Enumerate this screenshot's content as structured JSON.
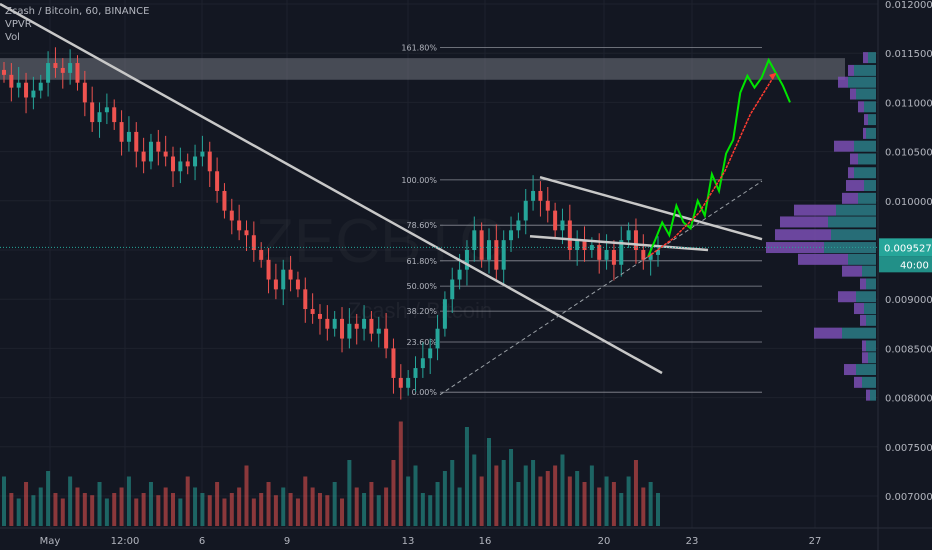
{
  "legend": {
    "symbol_line": "Zcash / Bitcoin, 60, BINANCE",
    "indicator1": "VPVR",
    "indicator2": "Vol"
  },
  "watermark": {
    "ticker": "ZECBTC",
    "name": "Zcash / Bitcoin"
  },
  "colors": {
    "background": "#131722",
    "grid": "#1e222d",
    "up": "#26a69a",
    "down": "#ef5350",
    "vpvr_up": "#2c7d86",
    "vpvr_down": "#7b4fb4",
    "projection_green": "#00e600",
    "projection_red": "#ff3b30",
    "trendline": "#c8c8c8",
    "resistance_zone": "#6b6e78"
  },
  "price_axis": {
    "ticks": [
      "0.012000",
      "0.011500",
      "0.011000",
      "0.010500",
      "0.010000",
      "0.009500",
      "0.009000",
      "0.008500",
      "0.008000",
      "0.007500",
      "0.007000"
    ],
    "current_price": "0.009527",
    "countdown": "40:00"
  },
  "time_axis": {
    "ticks": [
      "May",
      "12:00",
      "6",
      "9",
      "13",
      "16",
      "20",
      "23",
      "27"
    ]
  },
  "chart_data": {
    "type": "candlestick",
    "title": "Zcash / Bitcoin, 60, BINANCE",
    "xlabel": "",
    "ylabel": "",
    "ylim": [
      0.007,
      0.012
    ],
    "x_ticks": [
      "May",
      "12:00",
      "6",
      "9",
      "13",
      "16",
      "20",
      "23",
      "27"
    ],
    "y_ticks": [
      0.012,
      0.0115,
      0.011,
      0.0105,
      0.01,
      0.0095,
      0.009,
      0.0085,
      0.008,
      0.0075,
      0.007
    ],
    "last_price": 0.009527,
    "series": [
      {
        "name": "Zcash / Bitcoin",
        "values": [
          0.01128,
          0.01115,
          0.0112,
          0.01105,
          0.01112,
          0.0112,
          0.0114,
          0.01135,
          0.0113,
          0.0114,
          0.0112,
          0.011,
          0.0108,
          0.0109,
          0.01095,
          0.0108,
          0.0106,
          0.0107,
          0.0105,
          0.0104,
          0.0106,
          0.0105,
          0.01045,
          0.0103,
          0.0104,
          0.01035,
          0.01045,
          0.0105,
          0.0103,
          0.0101,
          0.0099,
          0.0098,
          0.0097,
          0.00965,
          0.0095,
          0.0094,
          0.0092,
          0.0091,
          0.0093,
          0.0092,
          0.0091,
          0.0089,
          0.00885,
          0.0088,
          0.0087,
          0.0088,
          0.0086,
          0.00875,
          0.0087,
          0.0088,
          0.00865,
          0.0087,
          0.0085,
          0.0082,
          0.0081,
          0.0082,
          0.0083,
          0.0084,
          0.0085,
          0.0087,
          0.009,
          0.0092,
          0.0093,
          0.0095,
          0.0097,
          0.0094,
          0.0096,
          0.0093,
          0.0096,
          0.0097,
          0.0098,
          0.01,
          0.0101,
          0.01,
          0.0099,
          0.0097,
          0.0098,
          0.0095,
          0.0096,
          0.0095,
          0.00955,
          0.0094,
          0.0095,
          0.00935,
          0.0096,
          0.0097,
          0.0095,
          0.0094,
          0.00945,
          0.0095
        ]
      },
      {
        "name": "Vol",
        "values": [
          45,
          30,
          25,
          40,
          28,
          35,
          50,
          30,
          25,
          45,
          35,
          30,
          28,
          40,
          25,
          30,
          35,
          45,
          25,
          30,
          40,
          28,
          35,
          30,
          25,
          45,
          35,
          30,
          28,
          40,
          25,
          30,
          35,
          55,
          25,
          30,
          40,
          28,
          35,
          30,
          25,
          45,
          35,
          30,
          28,
          40,
          25,
          60,
          35,
          30,
          40,
          28,
          35,
          60,
          95,
          45,
          55,
          30,
          28,
          40,
          50,
          60,
          35,
          90,
          65,
          45,
          80,
          55,
          60,
          70,
          40,
          55,
          60,
          45,
          50,
          55,
          65,
          45,
          50,
          40,
          55,
          35,
          45,
          40,
          30,
          45,
          60,
          35,
          40,
          30
        ]
      }
    ],
    "fibonacci": {
      "levels": [
        "161.80%",
        "100.00%",
        "78.60%",
        "61.80%",
        "50.00%",
        "38.20%",
        "23.60%",
        "0.00%"
      ],
      "prices": [
        0.011557,
        0.010213,
        0.009752,
        0.00939,
        0.009133,
        0.008879,
        0.008565,
        0.008055
      ]
    },
    "volume_profile": {
      "bins": [
        {
          "price": 0.01145,
          "up": 8,
          "down": 5
        },
        {
          "price": 0.01132,
          "up": 22,
          "down": 6
        },
        {
          "price": 0.0112,
          "up": 28,
          "down": 10
        },
        {
          "price": 0.01108,
          "up": 20,
          "down": 6
        },
        {
          "price": 0.01095,
          "up": 12,
          "down": 6
        },
        {
          "price": 0.01082,
          "up": 8,
          "down": 4
        },
        {
          "price": 0.01068,
          "up": 10,
          "down": 3
        },
        {
          "price": 0.01055,
          "up": 22,
          "down": 20
        },
        {
          "price": 0.01042,
          "up": 18,
          "down": 8
        },
        {
          "price": 0.01028,
          "up": 22,
          "down": 6
        },
        {
          "price": 0.01015,
          "up": 12,
          "down": 18
        },
        {
          "price": 0.01002,
          "up": 18,
          "down": 16
        },
        {
          "price": 0.0099,
          "up": 40,
          "down": 42
        },
        {
          "price": 0.00978,
          "up": 48,
          "down": 48
        },
        {
          "price": 0.00965,
          "up": 45,
          "down": 56
        },
        {
          "price": 0.00952,
          "up": 52,
          "down": 58
        },
        {
          "price": 0.0094,
          "up": 28,
          "down": 50
        },
        {
          "price": 0.00928,
          "up": 14,
          "down": 20
        },
        {
          "price": 0.00915,
          "up": 10,
          "down": 6
        },
        {
          "price": 0.00902,
          "up": 20,
          "down": 18
        },
        {
          "price": 0.0089,
          "up": 12,
          "down": 10
        },
        {
          "price": 0.00878,
          "up": 10,
          "down": 6
        },
        {
          "price": 0.00865,
          "up": 34,
          "down": 28
        },
        {
          "price": 0.00852,
          "up": 10,
          "down": 4
        },
        {
          "price": 0.0084,
          "up": 8,
          "down": 6
        },
        {
          "price": 0.00828,
          "up": 20,
          "down": 12
        },
        {
          "price": 0.00815,
          "up": 14,
          "down": 8
        },
        {
          "price": 0.00802,
          "up": 6,
          "down": 4
        }
      ]
    },
    "resistance_zone": [
      0.01123,
      0.01145
    ],
    "projection_path": [
      [
        0.00943,
        0.0096,
        0.00978,
        0.00965,
        0.00995,
        0.00978,
        0.00972,
        0.01,
        0.00985,
        0.01027,
        0.0101,
        0.01048,
        0.01062,
        0.0111,
        0.01127,
        0.01115,
        0.01125,
        0.01143,
        0.0113,
        0.01117,
        0.011
      ]
    ],
    "projection_path_red": [
      0.00943,
      0.00962,
      0.00988,
      0.0103,
      0.01088,
      0.0113
    ],
    "trendlines": [
      {
        "name": "major-downtrend",
        "from": [
          0.012
        ],
        "to": [
          0.00825
        ]
      },
      {
        "name": "channel-upper",
        "from": [
          0.01024
        ],
        "to": [
          0.00961
        ]
      },
      {
        "name": "channel-lower",
        "from": [
          0.00964
        ],
        "to": [
          0.0095
        ]
      },
      {
        "name": "dashed-support",
        "from": [
          0.00803
        ],
        "to": [
          0.0102
        ]
      }
    ]
  }
}
